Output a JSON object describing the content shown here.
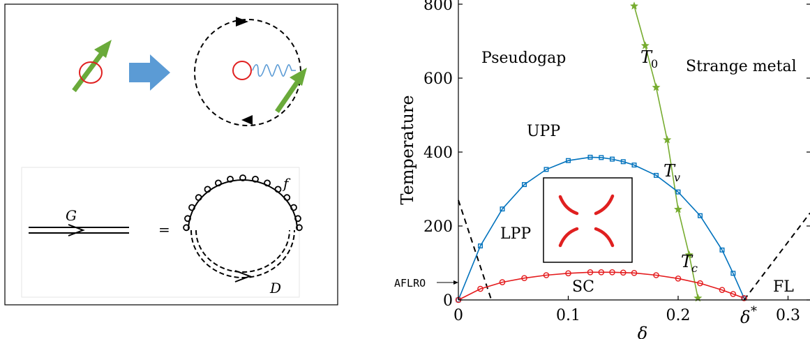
{
  "diagram": {
    "labels": {
      "G": "G",
      "f": "f",
      "D": "D",
      "equals": "="
    },
    "colors": {
      "spin_arrow": "#6aaa3a",
      "circle": "#e02020",
      "block_arrow": "#5b9bd5",
      "spring": "#5b9bd5",
      "loop": "#000000"
    }
  },
  "chart_data": {
    "type": "line",
    "xlabel": "δ",
    "ylabel": "Temperature",
    "xlim": [
      0,
      0.32
    ],
    "ylim": [
      0,
      800
    ],
    "xticks": [
      0,
      0.1,
      0.2,
      0.3
    ],
    "xtick_labels": [
      "0",
      "0.1",
      "0.2",
      "0.3"
    ],
    "yticks": [
      0,
      200,
      400,
      600,
      800
    ],
    "ytick_labels": [
      "0",
      "200",
      "400",
      "600",
      "800"
    ],
    "grid": false,
    "series": [
      {
        "name": "T_0",
        "label_main": "T",
        "label_sub": "0",
        "color": "#77ac30",
        "marker": "star",
        "points": [
          [
            0.16,
            795
          ],
          [
            0.17,
            688
          ],
          [
            0.18,
            575
          ],
          [
            0.19,
            433
          ],
          [
            0.2,
            245
          ],
          [
            0.21,
            122
          ],
          [
            0.218,
            5
          ]
        ]
      },
      {
        "name": "T_v",
        "label_main": "T",
        "label_sub": "v",
        "color": "#0072bd",
        "marker": "square",
        "points": [
          [
            0,
            0
          ],
          [
            0.02,
            146
          ],
          [
            0.04,
            246
          ],
          [
            0.06,
            312
          ],
          [
            0.08,
            353
          ],
          [
            0.1,
            377
          ],
          [
            0.12,
            386
          ],
          [
            0.13,
            385
          ],
          [
            0.14,
            381
          ],
          [
            0.15,
            374
          ],
          [
            0.16,
            365
          ],
          [
            0.18,
            337
          ],
          [
            0.2,
            292
          ],
          [
            0.22,
            228
          ],
          [
            0.24,
            135
          ],
          [
            0.25,
            72
          ],
          [
            0.26,
            5
          ]
        ]
      },
      {
        "name": "T_c",
        "label_main": "T",
        "label_sub": "c",
        "color": "#e41a1c",
        "marker": "circle",
        "points": [
          [
            0,
            0
          ],
          [
            0.02,
            30
          ],
          [
            0.04,
            48
          ],
          [
            0.06,
            59
          ],
          [
            0.08,
            67
          ],
          [
            0.1,
            72
          ],
          [
            0.12,
            75
          ],
          [
            0.13,
            75
          ],
          [
            0.14,
            75
          ],
          [
            0.15,
            74
          ],
          [
            0.16,
            73
          ],
          [
            0.18,
            67
          ],
          [
            0.2,
            58
          ],
          [
            0.22,
            45
          ],
          [
            0.24,
            27
          ],
          [
            0.25,
            16
          ],
          [
            0.26,
            5
          ]
        ]
      }
    ],
    "dashed_lines": [
      {
        "points": [
          [
            0,
            270
          ],
          [
            0.03,
            0
          ]
        ]
      },
      {
        "points": [
          [
            0.26,
            0
          ],
          [
            0.32,
            235
          ]
        ]
      }
    ],
    "region_labels": {
      "pseudogap": "Pseudogap",
      "strange_metal": "Strange metal",
      "upp": "UPP",
      "lpp": "LPP",
      "sc": "SC",
      "fl": "FL",
      "aflro": "AFLRO"
    },
    "delta_star": {
      "label": "δ",
      "sup": "*",
      "x": 0.26
    }
  }
}
